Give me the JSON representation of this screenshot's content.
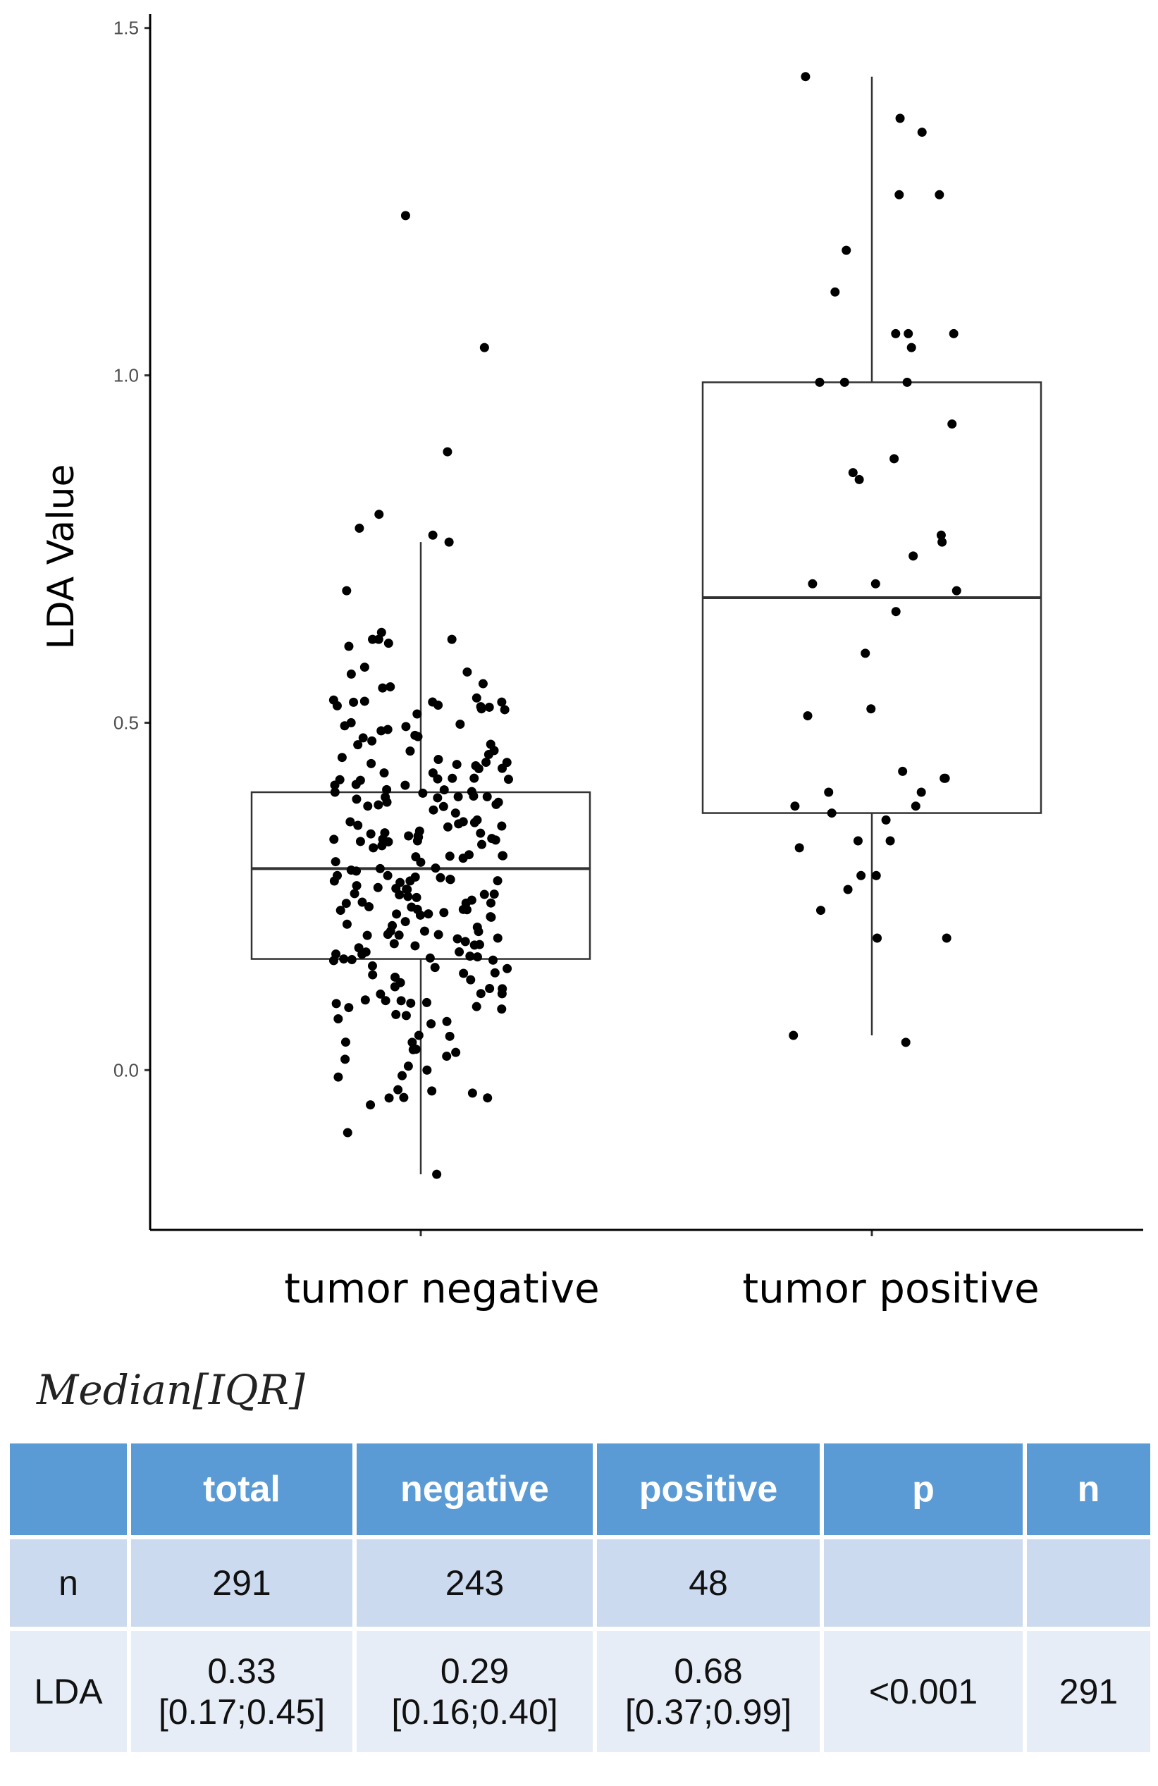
{
  "chart_data": {
    "type": "box",
    "ylabel": "LDA Value",
    "xlabel": "",
    "ylim": [
      -0.23,
      1.52
    ],
    "yticks": [
      "0.0",
      "0.5",
      "1.0",
      "1.5"
    ],
    "categories": [
      "tumor negative",
      "tumor positive"
    ],
    "boxes": [
      {
        "name": "tumor negative",
        "whisker_low": -0.15,
        "q1": 0.16,
        "median": 0.29,
        "q3": 0.4,
        "whisker_high": 0.76
      },
      {
        "name": "tumor positive",
        "whisker_low": 0.05,
        "q1": 0.37,
        "median": 0.68,
        "q3": 0.99,
        "whisker_high": 1.43
      }
    ],
    "points": [
      {
        "group": "tumor negative",
        "n": 243,
        "outliers": [
          1.23,
          1.04,
          0.89,
          0.8,
          0.78,
          -0.09,
          -0.15
        ],
        "example_values": [
          0.77,
          0.76,
          0.69,
          0.63,
          0.62,
          0.61,
          0.58,
          0.57,
          0.55,
          0.52,
          0.5,
          0.48,
          0.46,
          0.45,
          0.44,
          0.42,
          0.41,
          0.4,
          0.39,
          0.38,
          0.37,
          0.36,
          0.35,
          0.34,
          0.33,
          0.32,
          0.31,
          0.3,
          0.29,
          0.28,
          0.27,
          0.26,
          0.25,
          0.24,
          0.23,
          0.22,
          0.21,
          0.2,
          0.19,
          0.18,
          0.17,
          0.16,
          0.15,
          0.14,
          0.13,
          0.12,
          0.11,
          0.1,
          0.09,
          0.08,
          0.07,
          0.05,
          0.04,
          0.03,
          0.02,
          0.0,
          -0.01,
          -0.03,
          -0.04
        ]
      },
      {
        "group": "tumor positive",
        "n": 48,
        "values": [
          1.43,
          1.37,
          1.35,
          1.26,
          1.26,
          1.18,
          1.12,
          1.06,
          1.06,
          1.06,
          1.04,
          0.99,
          0.99,
          0.99,
          0.93,
          0.88,
          0.86,
          0.85,
          0.77,
          0.76,
          0.74,
          0.7,
          0.7,
          0.69,
          0.66,
          0.6,
          0.52,
          0.51,
          0.43,
          0.42,
          0.42,
          0.4,
          0.4,
          0.38,
          0.38,
          0.37,
          0.36,
          0.33,
          0.33,
          0.32,
          0.28,
          0.28,
          0.26,
          0.23,
          0.19,
          0.19,
          0.05,
          0.04
        ]
      }
    ]
  },
  "caption": "Median[IQR]",
  "table": {
    "headers": [
      "",
      "total",
      "negative",
      "positive",
      "p",
      "n"
    ],
    "rows": [
      {
        "label": "n",
        "total": "291",
        "negative": "243",
        "positive": "48",
        "p": "",
        "n": ""
      },
      {
        "label": "LDA",
        "total": "0.33",
        "total_iqr": "[0.17;0.45]",
        "negative": "0.29",
        "negative_iqr": "[0.16;0.40]",
        "positive": "0.68",
        "positive_iqr": "[0.37;0.99]",
        "p": "<0.001",
        "n": "291"
      }
    ]
  },
  "colors": {
    "header_bg": "#5b9bd5",
    "row1_bg": "#ccdaef",
    "row2_bg": "#e7edf7",
    "point": "#000000"
  }
}
